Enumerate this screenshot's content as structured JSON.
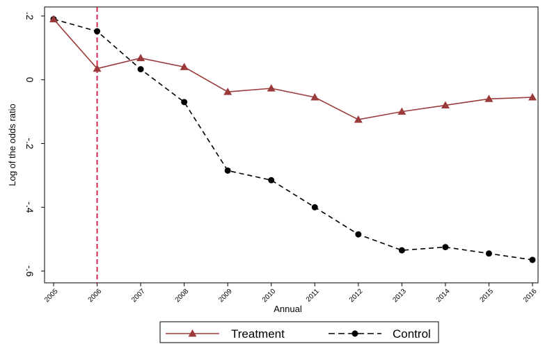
{
  "chart_data": {
    "type": "line",
    "title": "",
    "xlabel": "Annual",
    "ylabel": "Log of the odds ratio",
    "x": [
      2005,
      2006,
      2007,
      2008,
      2009,
      2010,
      2011,
      2012,
      2013,
      2014,
      2015,
      2016
    ],
    "xlim": [
      2005,
      2016
    ],
    "ylim": [
      -0.6,
      0.2
    ],
    "y_ticks": [
      ".2",
      "0",
      "-.2",
      "-.4",
      "-.6"
    ],
    "grid": false,
    "legend_position": "bottom",
    "vertical_reference_line": {
      "x": 2006,
      "color": "#d6254d",
      "style": "dashed"
    },
    "series": [
      {
        "name": "Treatment",
        "color": "#9b3a3a",
        "marker": "triangle",
        "line_style": "solid",
        "values": [
          0.19,
          0.035,
          0.068,
          0.04,
          -0.038,
          -0.027,
          -0.055,
          -0.125,
          -0.1,
          -0.08,
          -0.06,
          -0.055
        ]
      },
      {
        "name": "Control",
        "color": "#000000",
        "marker": "circle",
        "line_style": "dashed",
        "values": [
          0.19,
          0.152,
          0.033,
          -0.07,
          -0.285,
          -0.315,
          -0.4,
          -0.485,
          -0.535,
          -0.525,
          -0.545,
          -0.565
        ]
      }
    ]
  }
}
